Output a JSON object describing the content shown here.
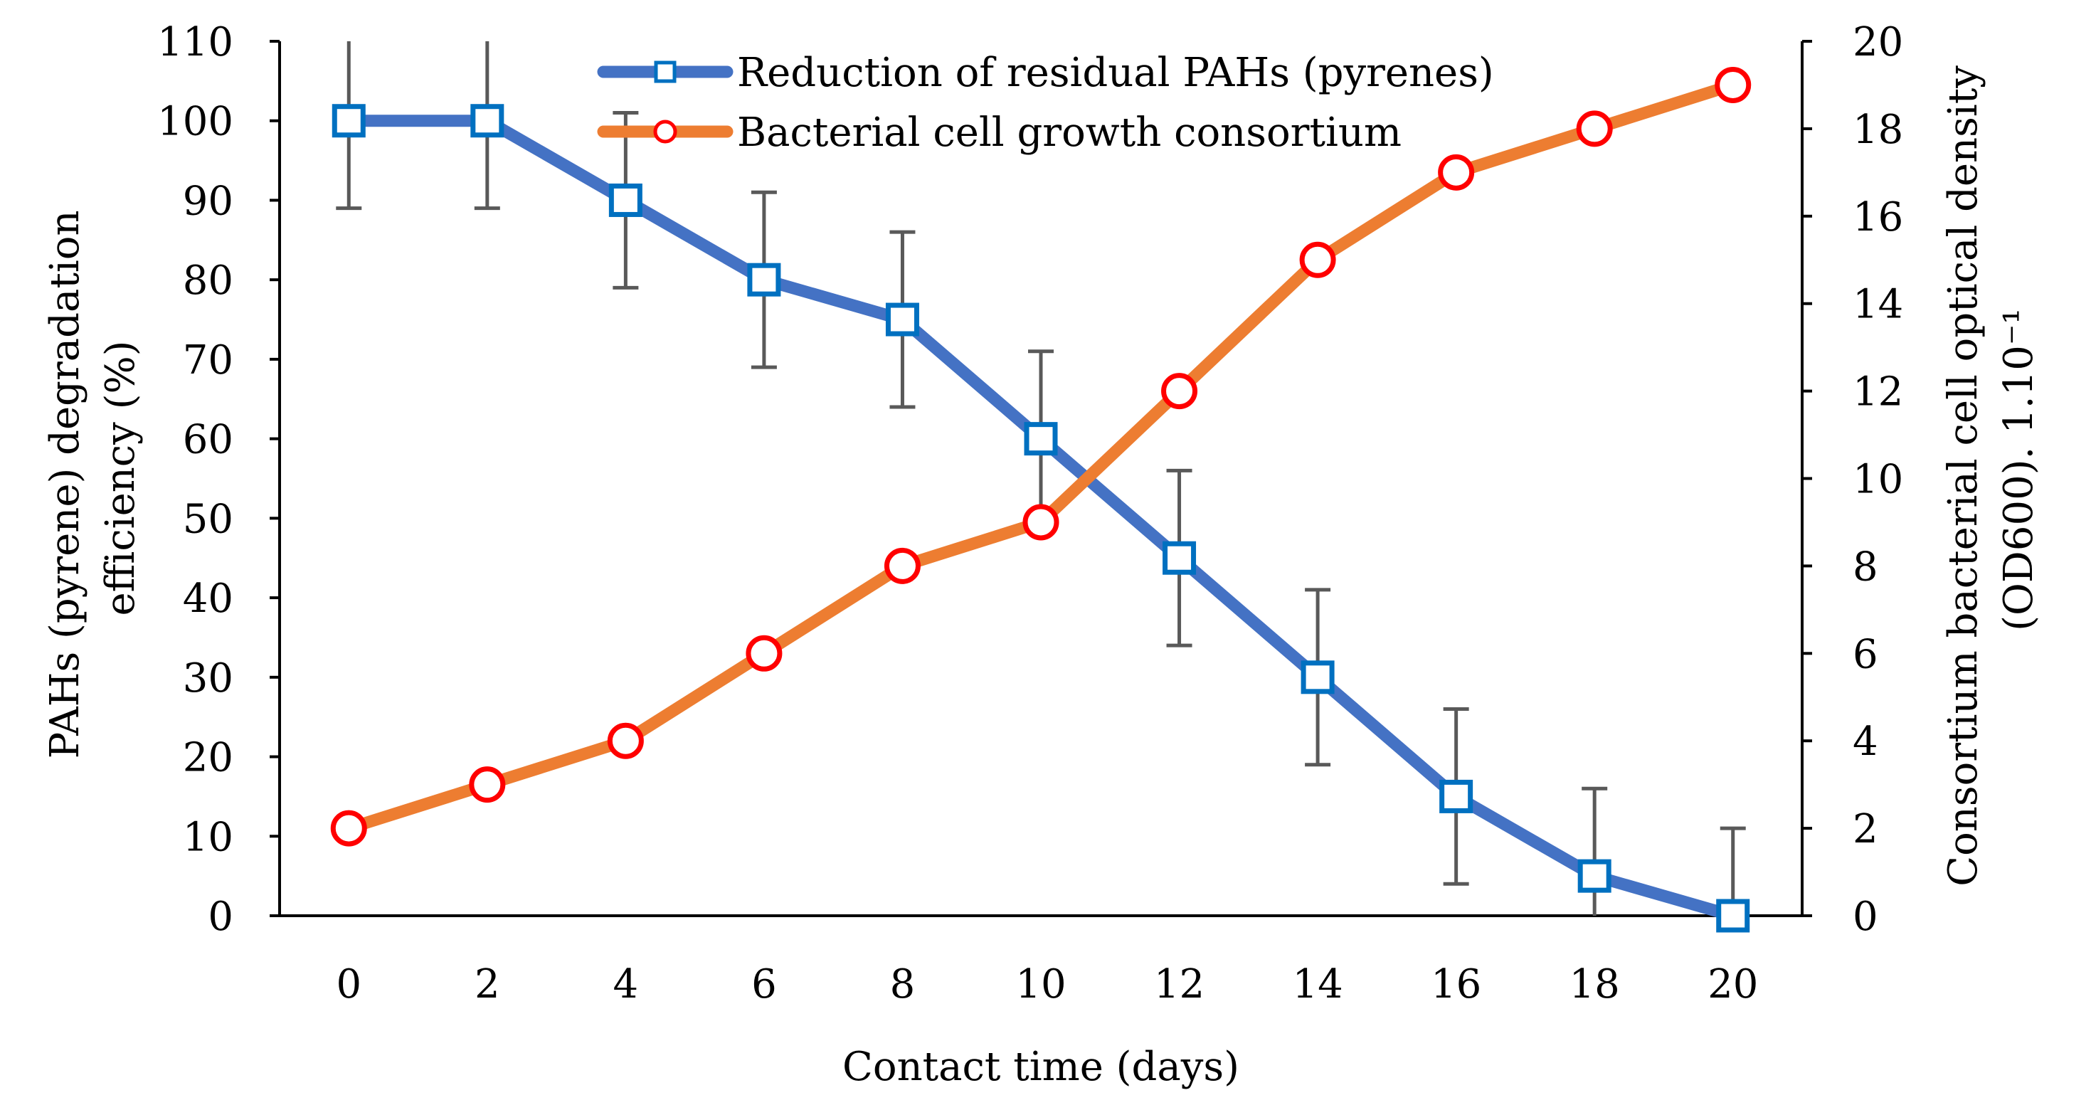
{
  "chart_data": {
    "type": "line",
    "title": "",
    "xlabel": "Contact time (days)",
    "ylabel_left": [
      "PAHs (pyrene) degradation",
      "efficiency (%)"
    ],
    "ylabel_right": [
      "Consortium bacterial cell optical density",
      "(OD600). 1.10⁻¹"
    ],
    "x": [
      0,
      2,
      4,
      6,
      8,
      10,
      12,
      14,
      16,
      18,
      20
    ],
    "x_ticks": [
      "0",
      "2",
      "4",
      "6",
      "8",
      "10",
      "12",
      "14",
      "16",
      "18",
      "20"
    ],
    "y_left_ticks": [
      "0",
      "10",
      "20",
      "30",
      "40",
      "50",
      "60",
      "70",
      "80",
      "90",
      "100",
      "110"
    ],
    "y_right_ticks": [
      "0",
      "2",
      "4",
      "6",
      "8",
      "10",
      "12",
      "14",
      "16",
      "18",
      "20"
    ],
    "xlim": [
      -1,
      21
    ],
    "ylim_left": [
      0,
      110
    ],
    "ylim_right": [
      0,
      20
    ],
    "grid": false,
    "legend_position": "top-center",
    "series": [
      {
        "name": "Reduction of residual PAHs (pyrenes)",
        "axis": "left",
        "marker": "square",
        "color": "#4472C4",
        "marker_color": "#0070C0",
        "values": [
          100,
          100,
          90,
          80,
          75,
          60,
          45,
          30,
          15,
          5,
          0
        ],
        "error": [
          11,
          11,
          11,
          11,
          11,
          11,
          11,
          11,
          11,
          11,
          11
        ]
      },
      {
        "name": "Bacterial cell growth consortium",
        "axis": "right",
        "marker": "circle",
        "color": "#ED7D31",
        "marker_color": "#FF0000",
        "values": [
          2,
          3,
          4,
          6,
          8,
          9,
          12,
          15,
          17,
          18,
          19
        ]
      }
    ]
  }
}
